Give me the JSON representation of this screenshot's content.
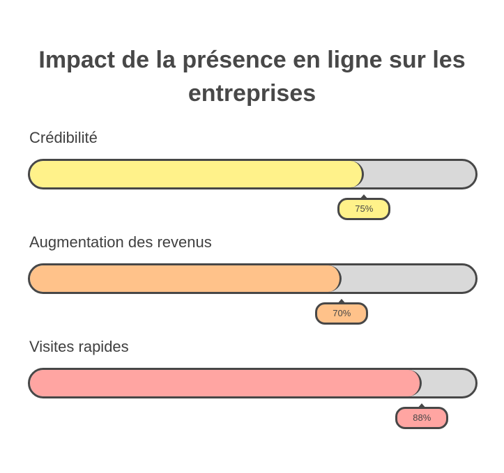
{
  "chart_data": {
    "type": "bar",
    "orientation": "horizontal",
    "title": "Impact de la présence en ligne sur les entreprises",
    "categories": [
      "Crédibilité",
      "Augmentation des revenus",
      "Visites rapides"
    ],
    "values": [
      75,
      70,
      88
    ],
    "value_labels": [
      "75%",
      "70%",
      "88%"
    ],
    "unit": "%",
    "xlim": [
      0,
      100
    ],
    "colors": [
      "#fff28a",
      "#ffc28a",
      "#ffa5a2"
    ],
    "track_color": "#d9d9d9",
    "grid": false
  }
}
